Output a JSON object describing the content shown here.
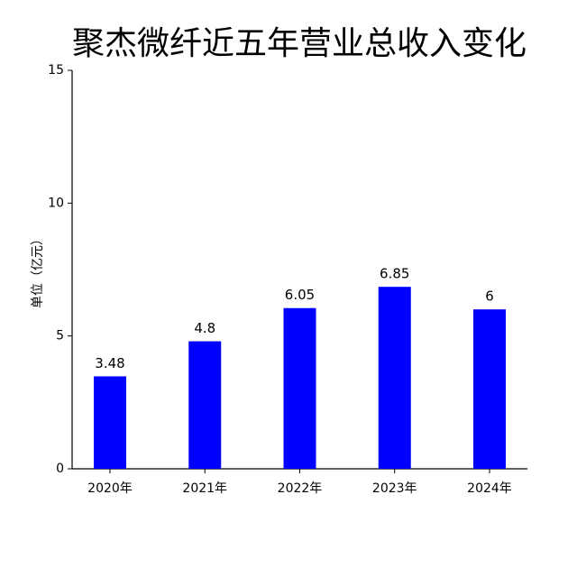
{
  "chart_data": {
    "type": "bar",
    "title": "聚杰微纤近五年营业总收入变化",
    "y_label": "单位（亿元）",
    "categories": [
      "2020年",
      "2021年",
      "2022年",
      "2023年",
      "2024年"
    ],
    "values": [
      3.48,
      4.8,
      6.05,
      6.85,
      6
    ],
    "color": "#0000ff",
    "ylim": [
      0,
      15
    ],
    "yticks": [
      0,
      5,
      10,
      15
    ],
    "grid": false
  }
}
